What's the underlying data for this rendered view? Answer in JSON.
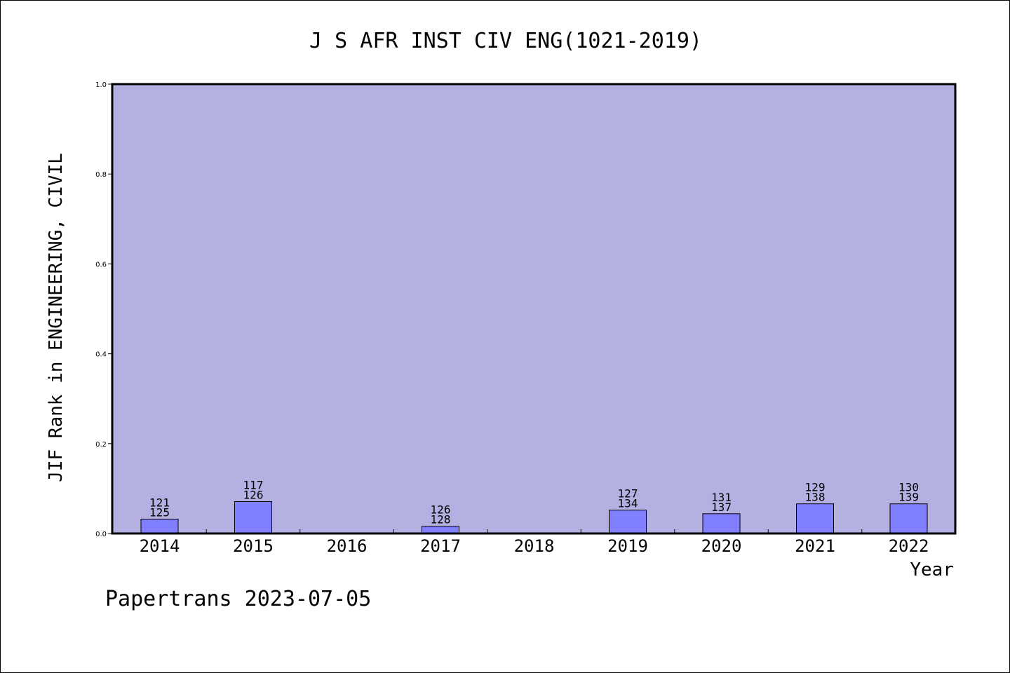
{
  "chart_data": {
    "type": "bar",
    "title": "J S AFR INST CIV ENG(1021-2019)",
    "xlabel": "Year",
    "ylabel": "JIF Rank in ENGINEERING, CIVIL",
    "ylim": [
      0.0,
      1.0
    ],
    "yticks": [
      "0.0",
      "0.2",
      "0.4",
      "0.6",
      "0.8",
      "1.0"
    ],
    "categories": [
      "2014",
      "2015",
      "2016",
      "2017",
      "2018",
      "2019",
      "2020",
      "2021",
      "2022"
    ],
    "values": [
      0.032,
      0.071,
      null,
      0.016,
      null,
      0.052,
      0.044,
      0.066,
      0.066
    ],
    "rank_labels": [
      {
        "rank": "121",
        "total": "125"
      },
      {
        "rank": "117",
        "total": "126"
      },
      null,
      {
        "rank": "126",
        "total": "128"
      },
      null,
      {
        "rank": "127",
        "total": "134"
      },
      {
        "rank": "131",
        "total": "137"
      },
      {
        "rank": "129",
        "total": "138"
      },
      {
        "rank": "130",
        "total": "139"
      }
    ],
    "grid": false,
    "colors": {
      "plot_background": "#b5b0e2",
      "bar_fill": "#8080ff",
      "axis": "#000000"
    }
  },
  "footer": {
    "text": "Papertrans 2023-07-05"
  }
}
